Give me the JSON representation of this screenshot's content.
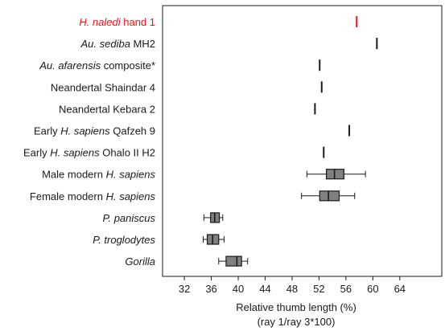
{
  "chart_data": {
    "type": "box",
    "xlabel": "Relative thumb length (%)",
    "xlabel_line2": "(ray 1/ray 3*100)",
    "xlim": [
      29,
      70
    ],
    "xticks": [
      32,
      36,
      40,
      44,
      48,
      52,
      56,
      60,
      64
    ],
    "grid": false,
    "highlight_color": "#e8141c",
    "box_fill": "#808080",
    "rows": [
      {
        "parts": [
          {
            "t": "H. naledi",
            "i": true
          },
          {
            "t": " hand 1",
            "i": false
          }
        ],
        "kind": "point",
        "value": 57.6,
        "highlight": true
      },
      {
        "parts": [
          {
            "t": "Au. sediba",
            "i": true
          },
          {
            "t": " MH2",
            "i": false
          }
        ],
        "kind": "point",
        "value": 60.6
      },
      {
        "parts": [
          {
            "t": "Au. afarensis",
            "i": true
          },
          {
            "t": " composite*",
            "i": false
          }
        ],
        "kind": "point",
        "value": 52.1
      },
      {
        "parts": [
          {
            "t": "Neandertal Shaindar 4",
            "i": false
          }
        ],
        "kind": "point",
        "value": 52.4
      },
      {
        "parts": [
          {
            "t": "Neandertal Kebara 2",
            "i": false
          }
        ],
        "kind": "point",
        "value": 51.4
      },
      {
        "parts": [
          {
            "t": "Early ",
            "i": false
          },
          {
            "t": "H. sapiens",
            "i": true
          },
          {
            "t": " Qafzeh 9",
            "i": false
          }
        ],
        "kind": "point",
        "value": 56.5
      },
      {
        "parts": [
          {
            "t": "Early ",
            "i": false
          },
          {
            "t": "H. sapiens",
            "i": true
          },
          {
            "t": " Ohalo II H2",
            "i": false
          }
        ],
        "kind": "point",
        "value": 52.7
      },
      {
        "parts": [
          {
            "t": "Male modern ",
            "i": false
          },
          {
            "t": "H. sapiens",
            "i": true
          }
        ],
        "kind": "box",
        "min": 50.2,
        "q1": 53.1,
        "median": 54.3,
        "q3": 55.7,
        "max": 58.9
      },
      {
        "parts": [
          {
            "t": "Female modern ",
            "i": false
          },
          {
            "t": "H. sapiens",
            "i": true
          }
        ],
        "kind": "box",
        "min": 49.4,
        "q1": 52.1,
        "median": 53.4,
        "q3": 55.0,
        "max": 57.3
      },
      {
        "parts": [
          {
            "t": "P. paniscus",
            "i": true
          }
        ],
        "kind": "box",
        "min": 34.9,
        "q1": 35.9,
        "median": 36.5,
        "q3": 37.2,
        "max": 37.7
      },
      {
        "parts": [
          {
            "t": "P. troglodytes",
            "i": true
          }
        ],
        "kind": "box",
        "min": 34.8,
        "q1": 35.4,
        "median": 36.2,
        "q3": 37.1,
        "max": 37.9
      },
      {
        "parts": [
          {
            "t": "Gorilla",
            "i": true
          }
        ],
        "kind": "box",
        "min": 37.1,
        "q1": 38.2,
        "median": 39.8,
        "q3": 40.5,
        "max": 41.4
      }
    ]
  }
}
